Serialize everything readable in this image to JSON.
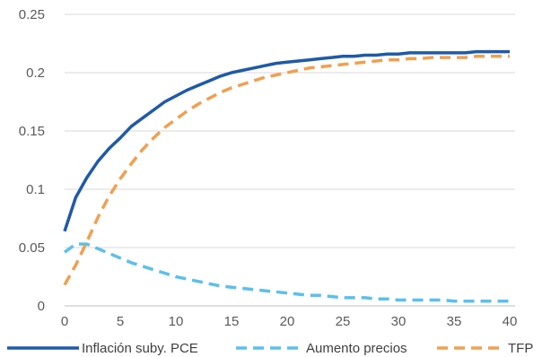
{
  "chart_data": {
    "type": "line",
    "title": "",
    "xlabel": "",
    "ylabel": "",
    "xlim": [
      0,
      40
    ],
    "ylim": [
      0,
      0.25
    ],
    "x_ticks": [
      0,
      5,
      10,
      15,
      20,
      25,
      30,
      35,
      40
    ],
    "x_tick_labels": [
      "0",
      "5",
      "10",
      "15",
      "20",
      "25",
      "30",
      "35",
      "40"
    ],
    "y_ticks": [
      0,
      0.05,
      0.1,
      0.15,
      0.2,
      0.25
    ],
    "y_tick_labels": [
      "0",
      "0.05",
      "0.1",
      "0.15",
      "0.2",
      "0.25"
    ],
    "grid": "horizontal",
    "legend_position": "bottom",
    "x": [
      0,
      1,
      2,
      3,
      4,
      5,
      6,
      7,
      8,
      9,
      10,
      11,
      12,
      13,
      14,
      15,
      16,
      17,
      18,
      19,
      20,
      21,
      22,
      23,
      24,
      25,
      26,
      27,
      28,
      29,
      30,
      31,
      32,
      33,
      34,
      35,
      36,
      37,
      38,
      39,
      40
    ],
    "series": [
      {
        "name": "Inflación suby. PCE",
        "color": "#1F5AA6",
        "dash": "solid",
        "values": [
          0.064,
          0.093,
          0.11,
          0.124,
          0.135,
          0.144,
          0.154,
          0.161,
          0.168,
          0.175,
          0.18,
          0.185,
          0.189,
          0.193,
          0.197,
          0.2,
          0.202,
          0.204,
          0.206,
          0.208,
          0.209,
          0.21,
          0.211,
          0.212,
          0.213,
          0.214,
          0.214,
          0.215,
          0.215,
          0.216,
          0.216,
          0.217,
          0.217,
          0.217,
          0.217,
          0.217,
          0.217,
          0.218,
          0.218,
          0.218,
          0.218
        ]
      },
      {
        "name": "Aumento precios",
        "color": "#5BC0EB",
        "dash": "dashed",
        "values": [
          0.046,
          0.053,
          0.053,
          0.049,
          0.045,
          0.041,
          0.037,
          0.034,
          0.031,
          0.028,
          0.025,
          0.023,
          0.021,
          0.019,
          0.017,
          0.016,
          0.015,
          0.014,
          0.013,
          0.012,
          0.011,
          0.01,
          0.009,
          0.009,
          0.008,
          0.007,
          0.007,
          0.007,
          0.006,
          0.006,
          0.005,
          0.005,
          0.005,
          0.005,
          0.005,
          0.004,
          0.004,
          0.004,
          0.004,
          0.004,
          0.004
        ]
      },
      {
        "name": "TFP",
        "color": "#F0A050",
        "dash": "dashed",
        "values": [
          0.018,
          0.035,
          0.055,
          0.076,
          0.094,
          0.109,
          0.122,
          0.134,
          0.144,
          0.153,
          0.16,
          0.167,
          0.173,
          0.178,
          0.183,
          0.187,
          0.19,
          0.193,
          0.196,
          0.198,
          0.2,
          0.202,
          0.204,
          0.205,
          0.206,
          0.207,
          0.208,
          0.209,
          0.21,
          0.211,
          0.211,
          0.212,
          0.212,
          0.213,
          0.213,
          0.213,
          0.213,
          0.214,
          0.214,
          0.214,
          0.214
        ]
      }
    ]
  }
}
